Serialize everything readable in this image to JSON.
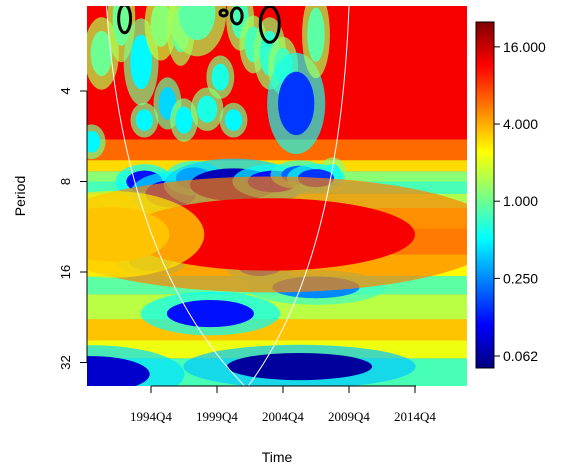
{
  "chart_data": {
    "type": "heatmap",
    "title": "",
    "xlabel": "Time",
    "ylabel": "Period",
    "x_ticks": [
      "1994Q4",
      "1999Q4",
      "2004Q4",
      "2009Q4",
      "2014Q4"
    ],
    "x_range_quarters_from_first_tick": [
      -19,
      38
    ],
    "y_ticks": [
      4,
      8,
      16,
      32
    ],
    "y_scale": "log2",
    "y_range": [
      2,
      40
    ],
    "y_reversed": true,
    "colorbar": {
      "scale": "log",
      "ticks": [
        "16.000",
        "4.000",
        "1.000",
        "0.250",
        "0.062"
      ],
      "range": [
        0.05,
        25
      ],
      "colormap": [
        "#00007f",
        "#0000ff",
        "#007fff",
        "#00ffff",
        "#7fff7f",
        "#ffff00",
        "#ff7f00",
        "#ff0000",
        "#7f0000"
      ]
    },
    "cone_of_influence": true,
    "significance_contours": true
  },
  "colors": {
    "background": "#ffffff",
    "cone_line": "#ffffff",
    "contour": "#000000"
  }
}
